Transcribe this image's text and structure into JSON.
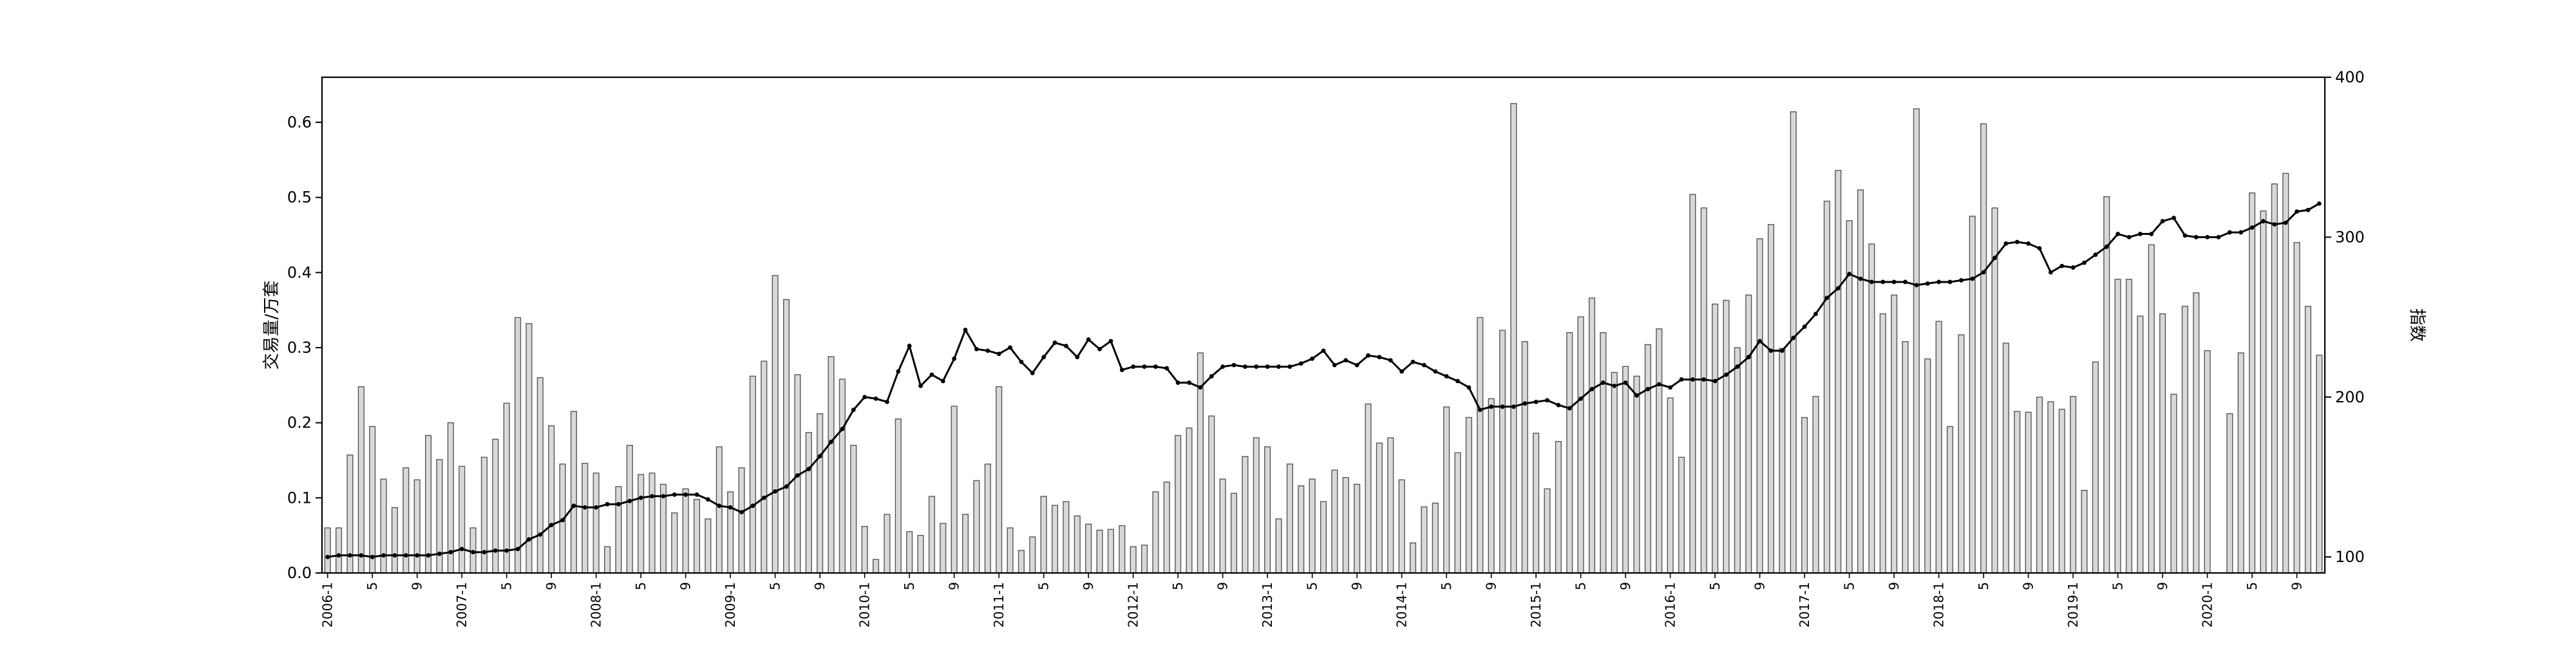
{
  "chart_data": {
    "type": "bar",
    "title": "",
    "xlabel": "",
    "ylabel": "交易量/万套",
    "ylabel_right": "指数",
    "ylim": [
      0,
      0.66
    ],
    "ylim_right": [
      90,
      400
    ],
    "grid": false,
    "x_start_year": 2006,
    "x_start_month": 1,
    "bar_fill": "#d9d9d9",
    "bar_edge": "#555555",
    "line_color": "#000000",
    "y_ticks": [
      "0.0",
      "0.1",
      "0.2",
      "0.3",
      "0.4",
      "0.5",
      "0.6"
    ],
    "y_right_ticks": [
      "100",
      "200",
      "300",
      "400"
    ],
    "x_tick_labels": [
      "2006-1",
      "5",
      "9",
      "2007-1",
      "5",
      "9",
      "2008-1",
      "5",
      "9",
      "2009-1",
      "5",
      "9",
      "2010-1",
      "5",
      "9",
      "2011-1",
      "5",
      "9",
      "2012-1",
      "5",
      "9",
      "2013-1",
      "5",
      "9",
      "2014-1",
      "5",
      "9",
      "2015-1",
      "5",
      "9",
      "2016-1",
      "5",
      "9",
      "2017-1",
      "5",
      "9",
      "2018-1",
      "5",
      "9",
      "2019-1",
      "5",
      "9",
      "2020-1",
      "5",
      "9"
    ],
    "series": [
      {
        "name": "交易量",
        "type": "bar",
        "values": [
          0.06,
          0.06,
          0.157,
          0.248,
          0.195,
          0.125,
          0.087,
          0.14,
          0.124,
          0.183,
          0.151,
          0.2,
          0.142,
          0.06,
          0.154,
          0.178,
          0.226,
          0.34,
          0.332,
          0.26,
          0.196,
          0.145,
          0.215,
          0.146,
          0.133,
          0.035,
          0.115,
          0.17,
          0.131,
          0.133,
          0.118,
          0.08,
          0.112,
          0.098,
          0.072,
          0.168,
          0.108,
          0.14,
          0.262,
          0.282,
          0.396,
          0.364,
          0.264,
          0.187,
          0.212,
          0.288,
          0.258,
          0.17,
          0.062,
          0.018,
          0.078,
          0.205,
          0.055,
          0.05,
          0.102,
          0.066,
          0.222,
          0.078,
          0.123,
          0.145,
          0.248,
          0.06,
          0.03,
          0.048,
          0.102,
          0.09,
          0.095,
          0.076,
          0.065,
          0.057,
          0.058,
          0.063,
          0.035,
          0.037,
          0.108,
          0.121,
          0.183,
          0.193,
          0.293,
          0.209,
          0.125,
          0.106,
          0.155,
          0.18,
          0.168,
          0.072,
          0.145,
          0.116,
          0.125,
          0.095,
          0.137,
          0.127,
          0.118,
          0.225,
          0.173,
          0.18,
          0.124,
          0.04,
          0.088,
          0.093,
          0.221,
          0.16,
          0.207,
          0.34,
          0.232,
          0.323,
          0.625,
          0.308,
          0.186,
          0.112,
          0.175,
          0.32,
          0.341,
          0.366,
          0.32,
          0.267,
          0.275,
          0.262,
          0.304,
          0.325,
          0.233,
          0.154,
          0.504,
          0.486,
          0.358,
          0.363,
          0.3,
          0.37,
          0.445,
          0.464,
          0.299,
          0.614,
          0.207,
          0.235,
          0.495,
          0.536,
          0.469,
          0.51,
          0.438,
          0.345,
          0.37,
          0.308,
          0.618,
          0.285,
          0.335,
          0.195,
          0.317,
          0.475,
          0.598,
          0.486,
          0.306,
          0.215,
          0.214,
          0.234,
          0.228,
          0.218,
          0.235,
          0.11,
          0.281,
          0.501,
          0.391,
          0.391,
          0.342,
          0.437,
          0.345,
          0.238,
          0.355,
          0.373,
          0.296,
          null,
          0.212,
          0.293,
          0.506,
          0.482,
          0.518,
          0.532,
          0.44,
          0.355,
          0.29
        ]
      },
      {
        "name": "指数",
        "type": "line",
        "axis": "right",
        "values": [
          100,
          101,
          101,
          101,
          100,
          101,
          101,
          101,
          101,
          101,
          102,
          103,
          105,
          103,
          103,
          104,
          104,
          105,
          111,
          114,
          120,
          123,
          132,
          131,
          131,
          133,
          133,
          135,
          137,
          138,
          138,
          139,
          139,
          139,
          136,
          132,
          131,
          128,
          132,
          137,
          141,
          144,
          151,
          155,
          163,
          172,
          180,
          192,
          200,
          199,
          197,
          216,
          232,
          207,
          214,
          210,
          224,
          242,
          230,
          229,
          227,
          231,
          222,
          215,
          225,
          234,
          232,
          225,
          236,
          230,
          235,
          217,
          219,
          219,
          219,
          218,
          209,
          209,
          206,
          213,
          219,
          220,
          219,
          219,
          219,
          219,
          219,
          221,
          224,
          229,
          220,
          223,
          220,
          226,
          225,
          223,
          216,
          222,
          220,
          216,
          213,
          210,
          206,
          192,
          194,
          194,
          194,
          196,
          197,
          198,
          195,
          193,
          199,
          205,
          209,
          207,
          209,
          201,
          205,
          208,
          206,
          211,
          211,
          211,
          210,
          214,
          219,
          225,
          235,
          229,
          229,
          237,
          244,
          252,
          262,
          268,
          277,
          274,
          272,
          272,
          272,
          272,
          270,
          271,
          272,
          272,
          273,
          274,
          278,
          287,
          296,
          297,
          296,
          293,
          278,
          282,
          281,
          284,
          289,
          294,
          302,
          300,
          302,
          302,
          310,
          312,
          301,
          300,
          300,
          300,
          303,
          303,
          306,
          310,
          308,
          309,
          316,
          317,
          321
        ]
      }
    ]
  }
}
